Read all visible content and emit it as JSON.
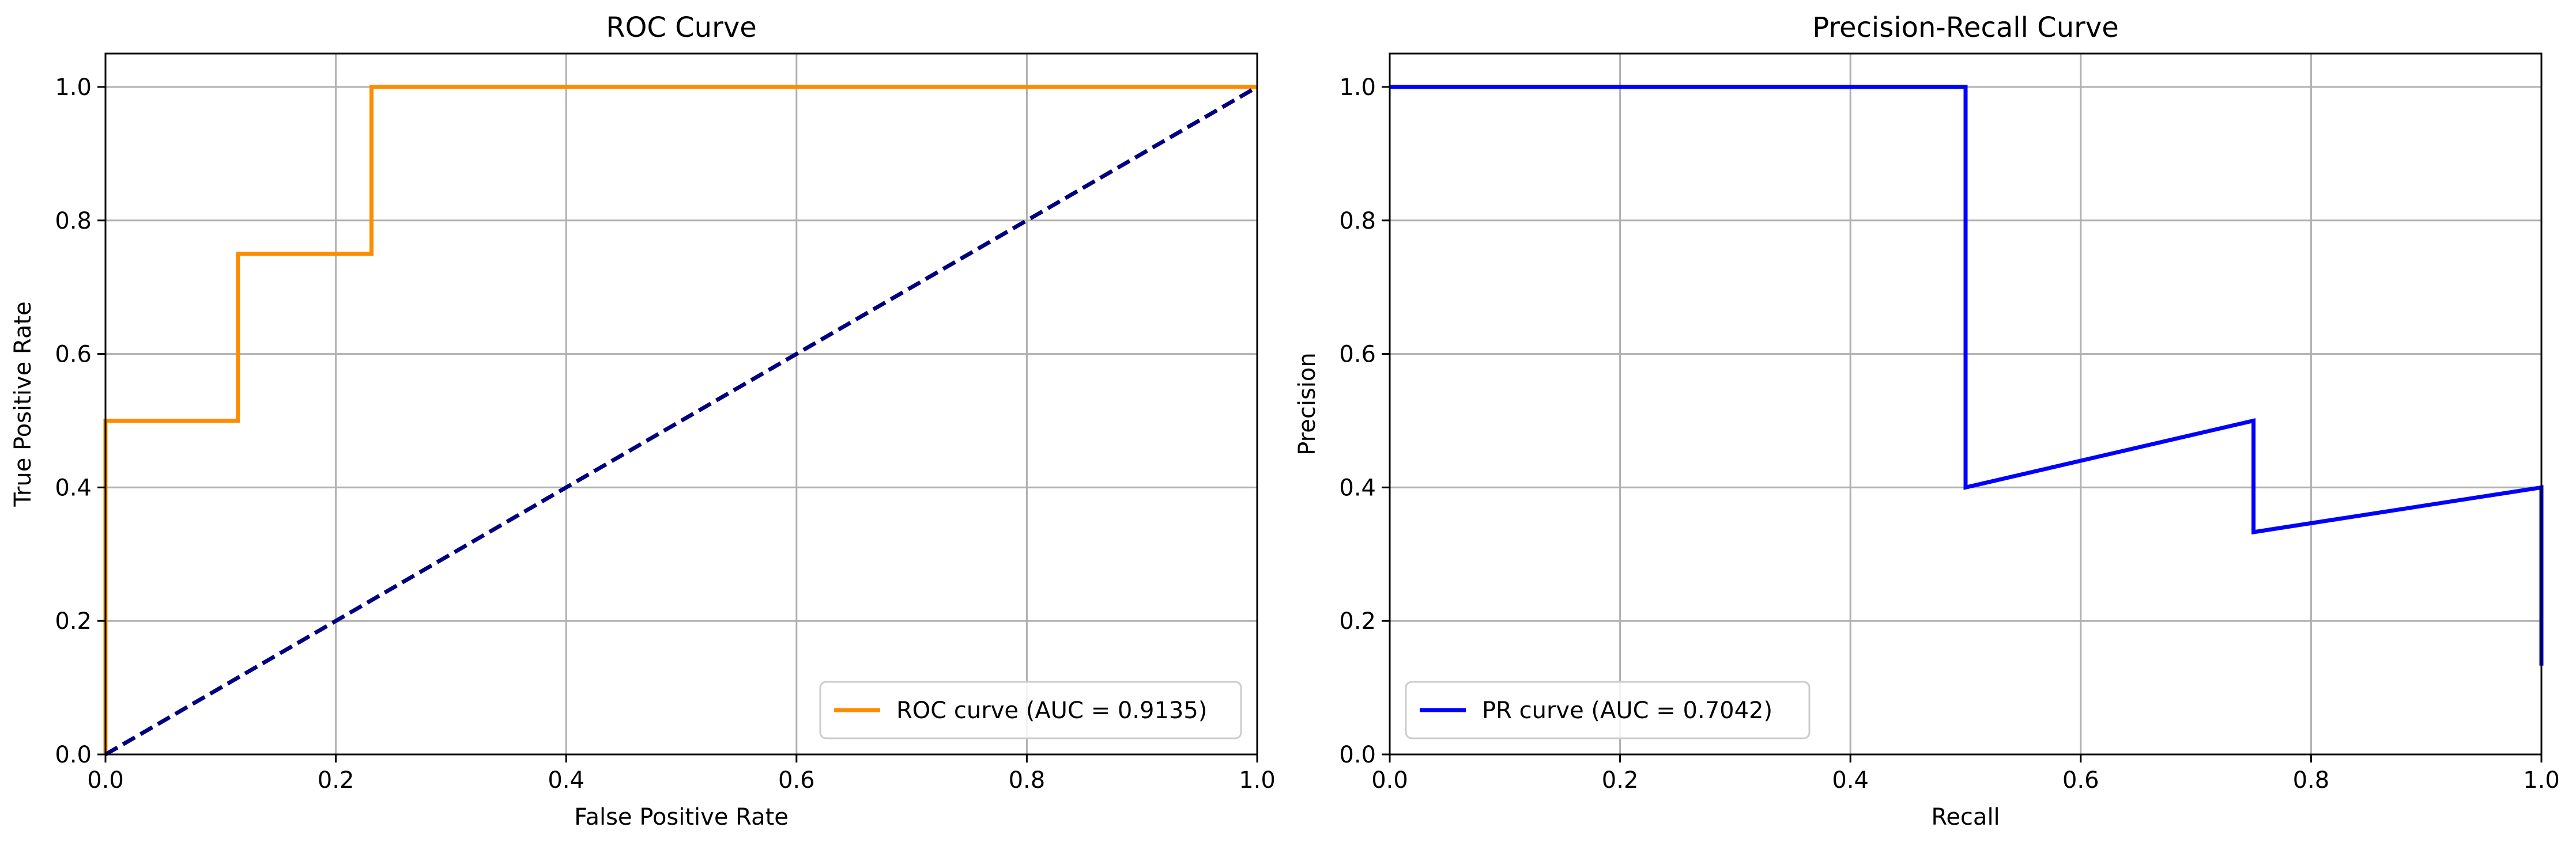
{
  "chart_data": [
    {
      "type": "line",
      "title": "ROC Curve",
      "xlabel": "False Positive Rate",
      "ylabel": "True Positive Rate",
      "xlim": [
        0.0,
        1.0
      ],
      "ylim": [
        0.0,
        1.05
      ],
      "xticks": [
        "0.0",
        "0.2",
        "0.4",
        "0.6",
        "0.8",
        "1.0"
      ],
      "yticks": [
        "0.0",
        "0.2",
        "0.4",
        "0.6",
        "0.8",
        "1.0"
      ],
      "grid": true,
      "legend_loc": "lower right",
      "series": [
        {
          "name": "ROC curve (AUC = 0.9135)",
          "color": "#ff8c00",
          "style": "solid",
          "x": [
            0.0,
            0.0,
            0.0,
            0.115,
            0.115,
            0.231,
            0.231,
            1.0
          ],
          "y": [
            0.0,
            0.25,
            0.5,
            0.5,
            0.75,
            0.75,
            1.0,
            1.0
          ]
        },
        {
          "color": "#000080",
          "style": "dashed",
          "x": [
            0.0,
            1.0
          ],
          "y": [
            0.0,
            1.0
          ]
        }
      ]
    },
    {
      "type": "line",
      "title": "Precision-Recall Curve",
      "xlabel": "Recall",
      "ylabel": "Precision",
      "xlim": [
        0.0,
        1.0
      ],
      "ylim": [
        0.0,
        1.05
      ],
      "xticks": [
        "0.0",
        "0.2",
        "0.4",
        "0.6",
        "0.8",
        "1.0"
      ],
      "yticks": [
        "0.0",
        "0.2",
        "0.4",
        "0.6",
        "0.8",
        "1.0"
      ],
      "grid": true,
      "legend_loc": "lower left",
      "series": [
        {
          "name": "PR curve (AUC = 0.7042)",
          "color": "#0000ff",
          "style": "solid",
          "x": [
            0.0,
            0.5,
            0.5,
            0.75,
            0.75,
            1.0,
            1.0
          ],
          "y": [
            1.0,
            1.0,
            0.4,
            0.5,
            0.333,
            0.4,
            0.133
          ]
        }
      ]
    }
  ]
}
